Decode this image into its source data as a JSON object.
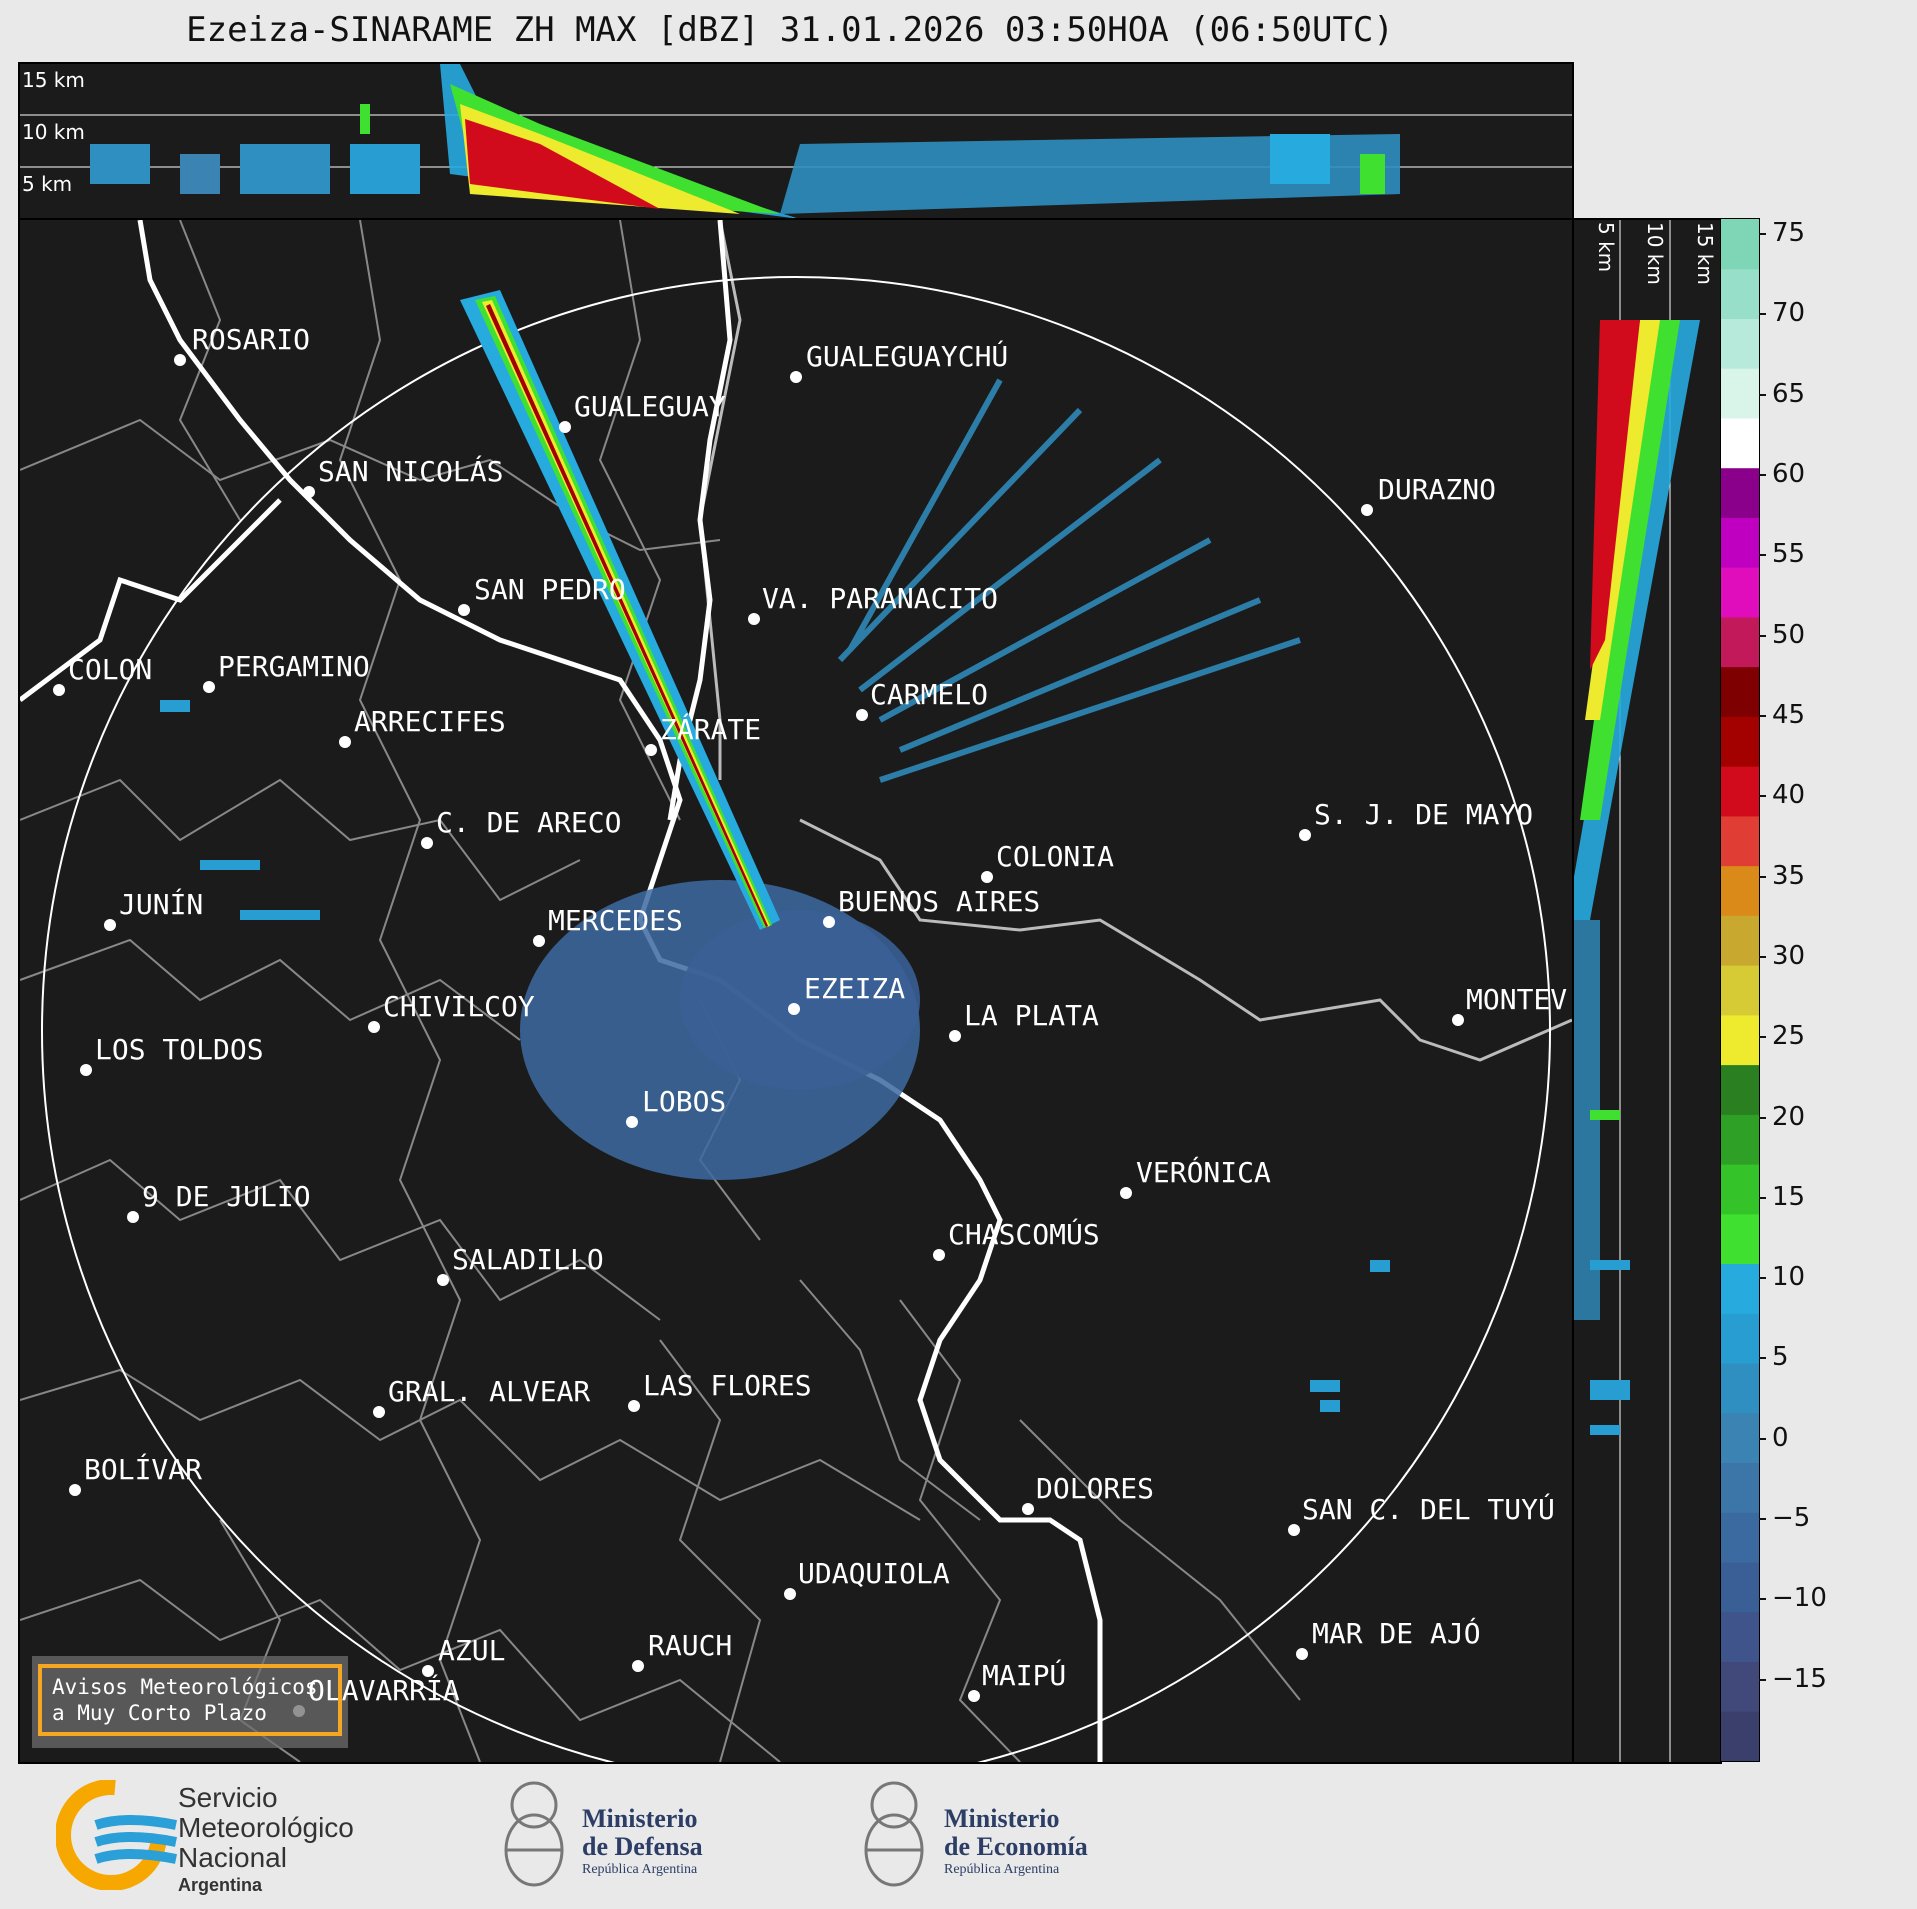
{
  "title": "Ezeiza-SINARAME ZH MAX [dBZ] 31.01.2026 03:50HOA (06:50UTC)",
  "top_panel": {
    "labels": [
      "15 km",
      "10 km",
      "5 km"
    ]
  },
  "side_panel": {
    "labels": [
      "5 km",
      "10 km",
      "15 km"
    ]
  },
  "map": {
    "cities": [
      {
        "name": "ROSARIO"
      },
      {
        "name": "GUALEGUAYCHÚ"
      },
      {
        "name": "GUALEGUAY"
      },
      {
        "name": "SAN NICOLÁS"
      },
      {
        "name": "DURAZNO"
      },
      {
        "name": "SAN PEDRO"
      },
      {
        "name": "VA. PARANACITO"
      },
      {
        "name": "COLON"
      },
      {
        "name": "PERGAMINO"
      },
      {
        "name": "CARMELO"
      },
      {
        "name": "ARRECIFES"
      },
      {
        "name": "ZÁRATE"
      },
      {
        "name": "C. DE ARECO"
      },
      {
        "name": "S. J. DE MAYO"
      },
      {
        "name": "COLONIA"
      },
      {
        "name": "JUNÍN"
      },
      {
        "name": "BUENOS AIRES"
      },
      {
        "name": "MERCEDES"
      },
      {
        "name": "EZEIZA"
      },
      {
        "name": "MONTEV"
      },
      {
        "name": "CHIVILCOY"
      },
      {
        "name": "LA PLATA"
      },
      {
        "name": "LOS TOLDOS"
      },
      {
        "name": "LOBOS"
      },
      {
        "name": "VERÓNICA"
      },
      {
        "name": "9 DE JULIO"
      },
      {
        "name": "CHASCOMÚS"
      },
      {
        "name": "SALADILLO"
      },
      {
        "name": "GRAL. ALVEAR"
      },
      {
        "name": "LAS FLORES"
      },
      {
        "name": "BOLÍVAR"
      },
      {
        "name": "DOLORES"
      },
      {
        "name": "SAN C. DEL TUYÚ"
      },
      {
        "name": "UDAQUIOLA"
      },
      {
        "name": "MAR DE AJÓ"
      },
      {
        "name": "AZUL"
      },
      {
        "name": "RAUCH"
      },
      {
        "name": "MAIPÚ"
      },
      {
        "name": "OLAVARRÍA"
      }
    ],
    "warning_box": {
      "line1": "Avisos Meteorológicos",
      "line2": "a Muy Corto Plazo"
    }
  },
  "colorbar": {
    "unit": "dBZ",
    "ticks": [
      "75",
      "70",
      "65",
      "60",
      "55",
      "50",
      "45",
      "40",
      "35",
      "30",
      "25",
      "20",
      "15",
      "10",
      "5",
      "0",
      "−5",
      "−10",
      "−15"
    ],
    "range": [
      -20,
      76
    ],
    "colors": [
      "#3b3f6b",
      "#41497a",
      "#3e548a",
      "#3a5f96",
      "#3b6aa0",
      "#3c76a8",
      "#3a83b2",
      "#2f8fc0",
      "#289dd1",
      "#27abdf",
      "#3fe02f",
      "#34c42a",
      "#2ea026",
      "#2a7f20",
      "#eeea2e",
      "#d6cb34",
      "#c9a82f",
      "#d98a19",
      "#e03d35",
      "#d10b1b",
      "#a30000",
      "#7f0000",
      "#c2195a",
      "#e00dbc",
      "#c000c0",
      "#8b008b",
      "#ffffff",
      "#d9f5ea",
      "#b8eadb",
      "#98dfc9",
      "#7fd6b7"
    ]
  },
  "footer": {
    "smn": {
      "line1": "Servicio",
      "line2": "Meteorológico",
      "line3": "Nacional",
      "line4": "Argentina"
    },
    "defensa": {
      "line1": "Ministerio",
      "line2": "de Defensa",
      "line3": "República Argentina"
    },
    "economia": {
      "line1": "Ministerio",
      "line2": "de Economía",
      "line3": "República Argentina"
    }
  }
}
